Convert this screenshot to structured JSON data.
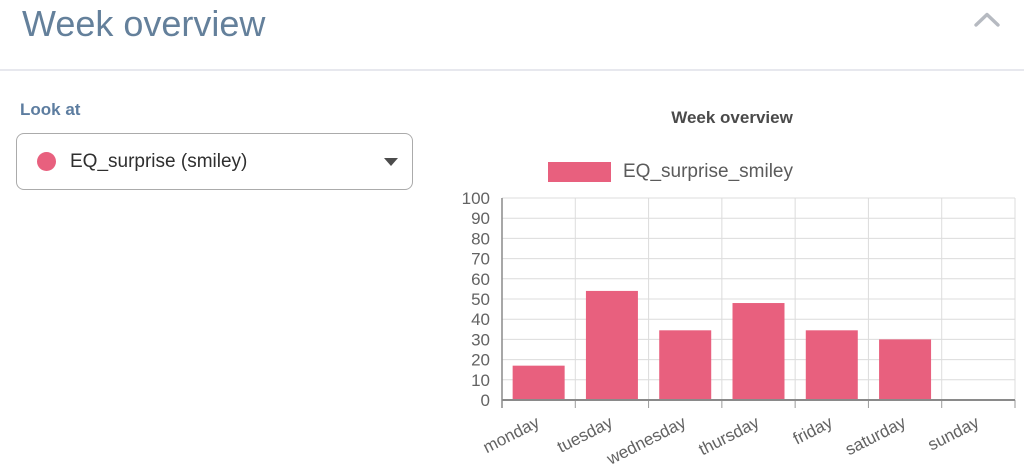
{
  "header": {
    "title": "Week overview",
    "collapse_icon": "chevron-up"
  },
  "panel": {
    "look_at_label": "Look at",
    "dropdown": {
      "selected": "EQ_surprise (smiley)",
      "dot_icon": "series-color-dot",
      "caret_icon": "caret-down"
    }
  },
  "colors": {
    "accent_pink": "#e8607e",
    "heading_blue": "#64809b",
    "label_blue": "#5d7da0",
    "dropdown_text": "#2f2f2f",
    "dropdown_border": "#ababab",
    "chart_title_gray": "#4a4a4a",
    "legend_text": "#5b5b5b",
    "chart_text": "#636363",
    "grid": "#dcdcdc",
    "axis": "#8a8a8a",
    "tick": "#9a9a9a",
    "divider": "#e7e8ee",
    "chevron_gray": "#b6bac1",
    "caret_gray": "#4c4c4c"
  },
  "chart_data": {
    "type": "bar",
    "title": "Week overview",
    "categories": [
      "monday",
      "tuesday",
      "wednesday",
      "thursday",
      "friday",
      "saturday",
      "sunday"
    ],
    "series": [
      {
        "name": "EQ_surprise_smiley",
        "color": "#e8607e",
        "values": [
          17,
          54,
          34.5,
          48,
          34.5,
          30,
          0
        ]
      }
    ],
    "xlabel": "",
    "ylabel": "",
    "ylim": [
      0,
      100
    ],
    "ytick_step": 10,
    "grid": true,
    "legend_position": "top",
    "x_label_rotation": -27
  }
}
